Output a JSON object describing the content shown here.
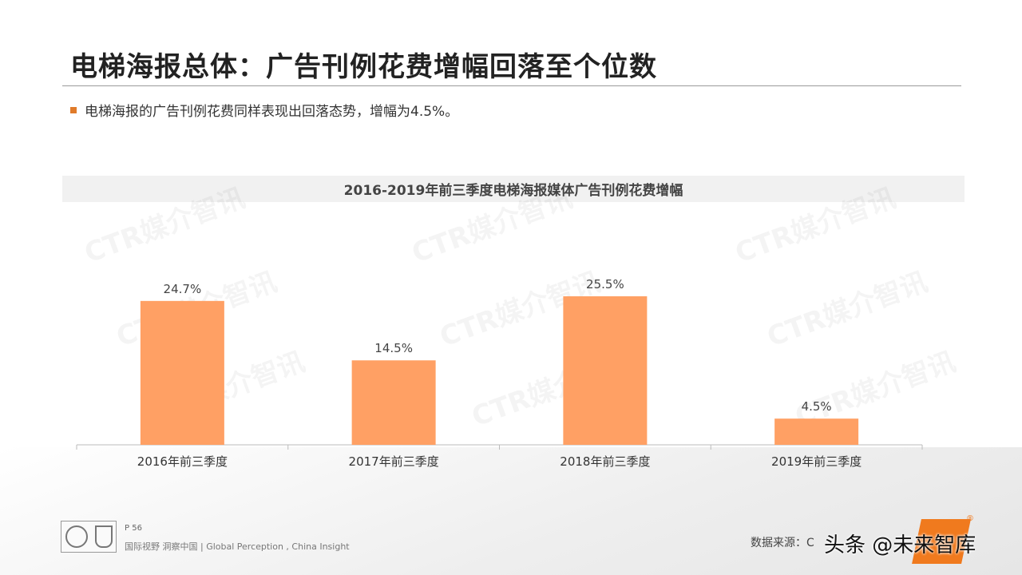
{
  "header": {
    "title": "电梯海报总体：广告刊例花费增幅回落至个位数",
    "bullet": "电梯海报的广告刊例花费同样表现出回落态势，增幅为4.5%。"
  },
  "watermark_text": "CTR媒介智讯",
  "colors": {
    "bar": "#ffa064",
    "accent": "#e07b2a",
    "axis": "#bbbbbb"
  },
  "chart_data": {
    "type": "bar",
    "title": "2016-2019年前三季度电梯海报媒体广告刊例花费增幅",
    "categories": [
      "2016年前三季度",
      "2017年前三季度",
      "2018年前三季度",
      "2019年前三季度"
    ],
    "values": [
      24.7,
      14.5,
      25.5,
      4.5
    ],
    "data_labels": [
      "24.7%",
      "14.5%",
      "25.5%",
      "4.5%"
    ],
    "ylim": [
      0,
      25.5
    ],
    "xlabel": "",
    "ylabel": "",
    "grid": false
  },
  "footer": {
    "page": "P 56",
    "slogan": "国际视野  洞察中国 |  Global Perception , China Insight",
    "source": "数据来源：C",
    "toutiao": "头条 @未来智库",
    "reg_mark": "®"
  }
}
